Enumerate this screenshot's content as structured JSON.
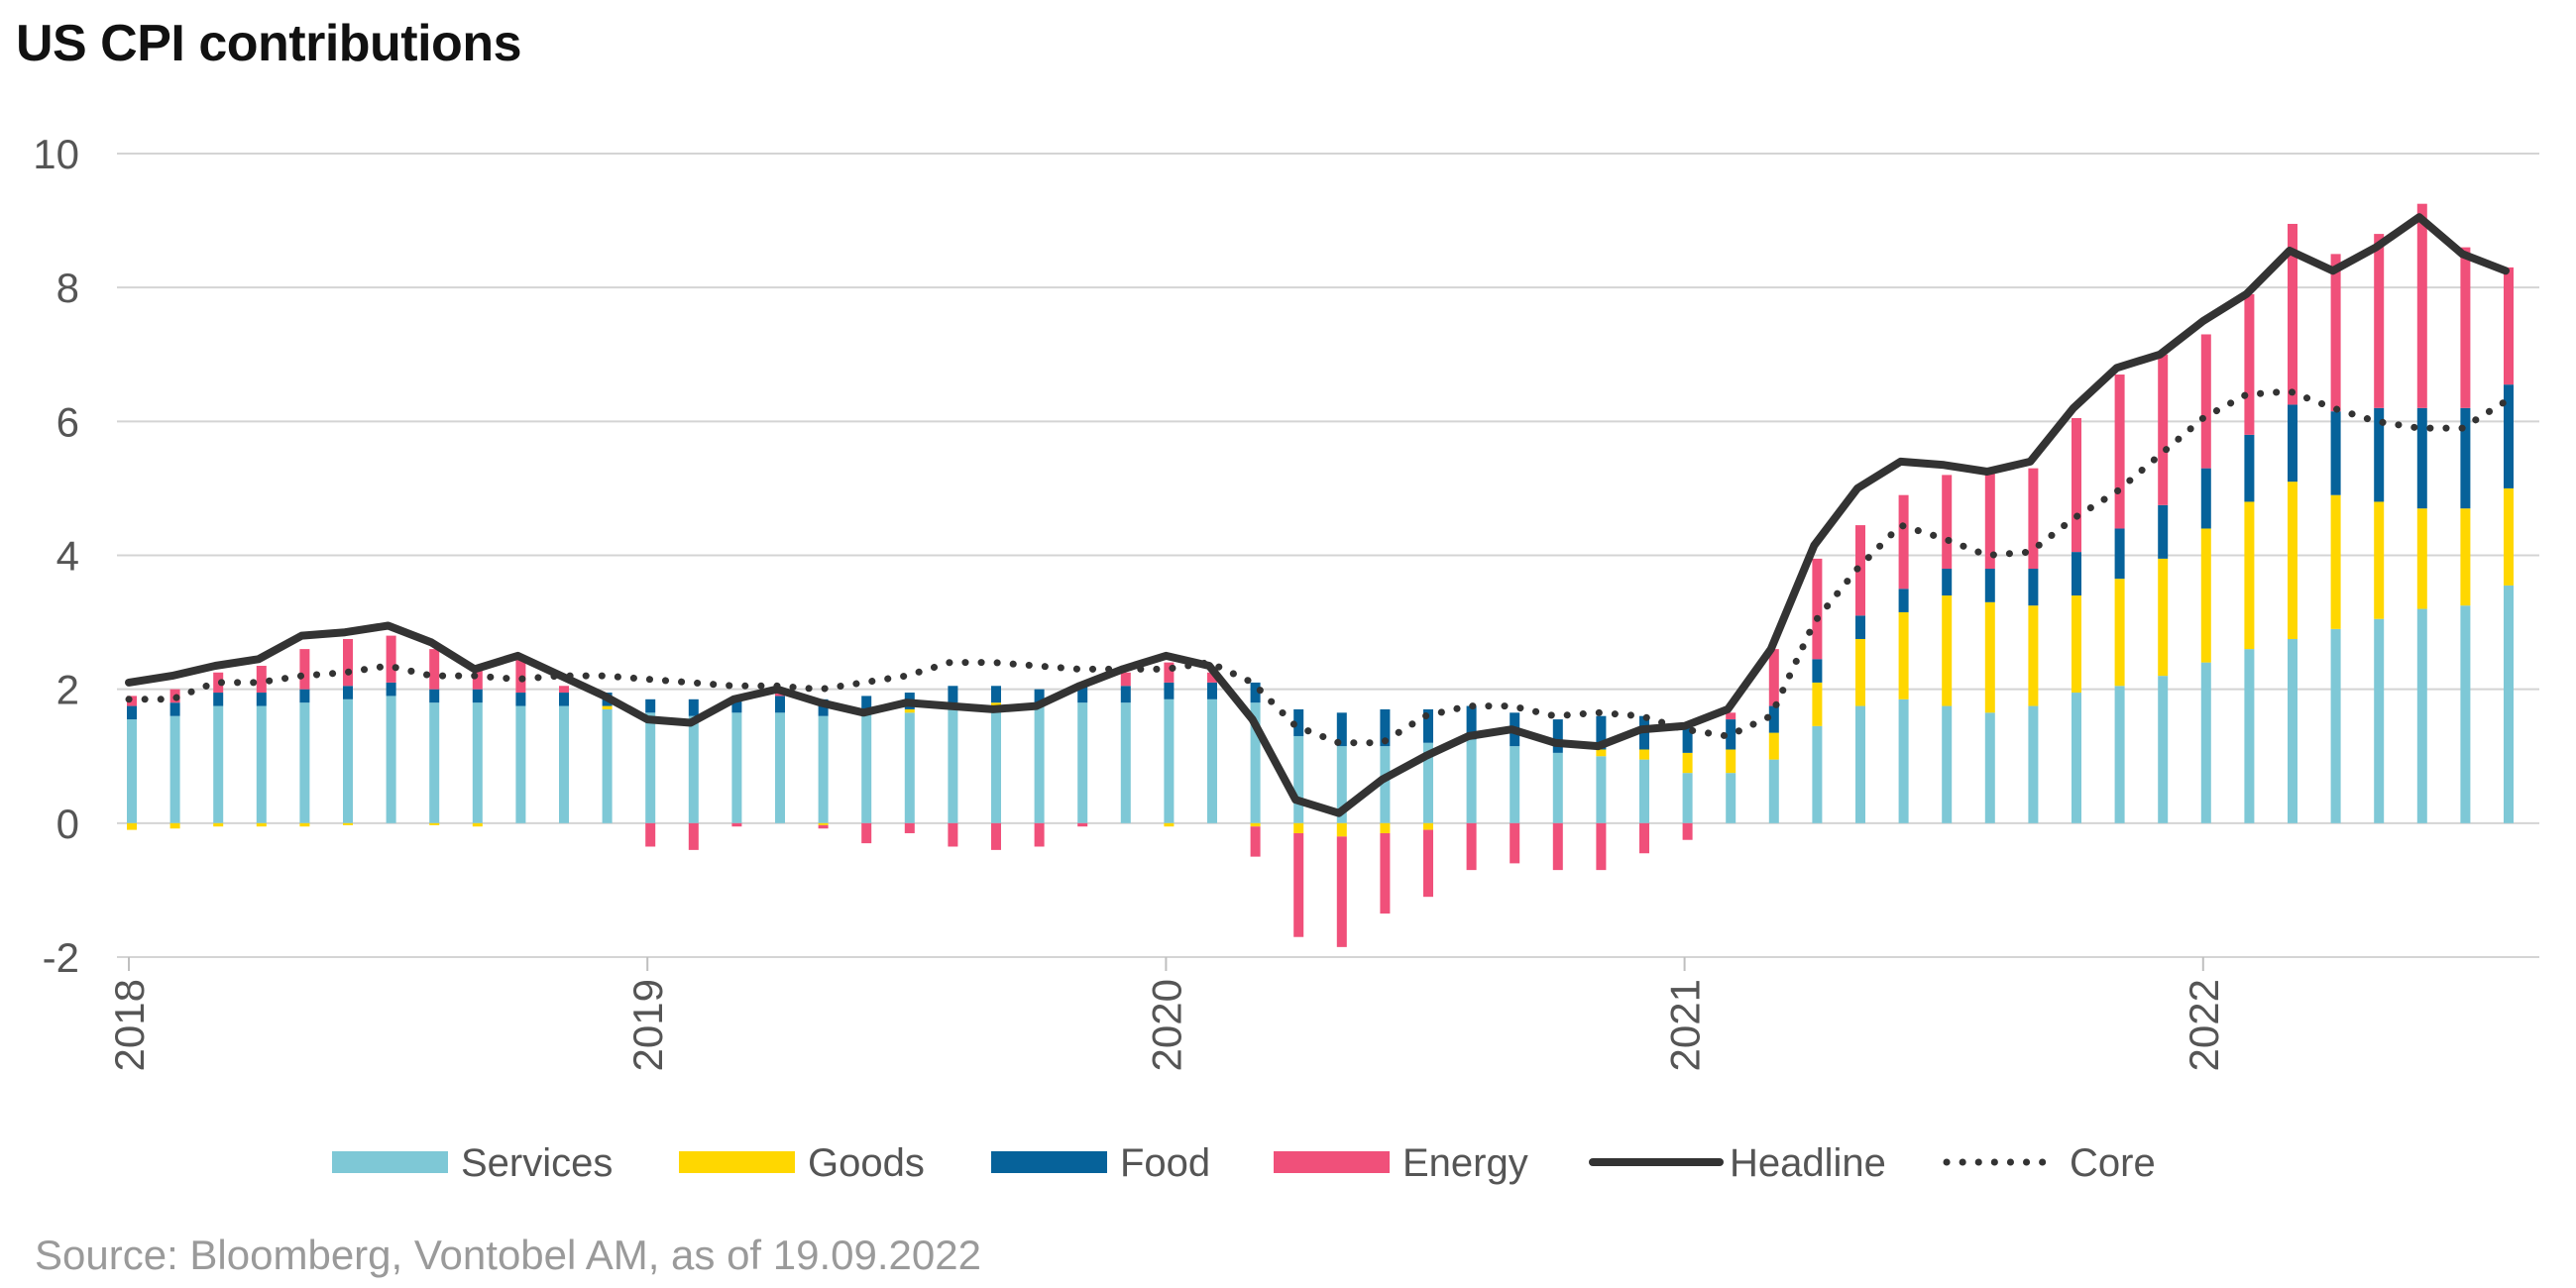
{
  "title": "US CPI contributions",
  "source": "Source: Bloomberg, Vontobel AM, as of 19.09.2022",
  "chart_data": {
    "type": "bar",
    "title": "US CPI contributions",
    "xlabel": "",
    "ylabel": "",
    "ylim": [
      -2,
      10
    ],
    "yticks": [
      10,
      8,
      6,
      4,
      2,
      0,
      -2
    ],
    "ytick_labels": [
      "10",
      "8",
      "6",
      "4",
      "2",
      "0",
      "-2"
    ],
    "xtick_labels": [
      "2018",
      "2019",
      "2020",
      "2021",
      "2022"
    ],
    "xtick_index": [
      0,
      12,
      24,
      36,
      48
    ],
    "grid": true,
    "legend_position": "bottom",
    "months": [
      "2018-01",
      "2018-02",
      "2018-03",
      "2018-04",
      "2018-05",
      "2018-06",
      "2018-07",
      "2018-08",
      "2018-09",
      "2018-10",
      "2018-11",
      "2018-12",
      "2019-01",
      "2019-02",
      "2019-03",
      "2019-04",
      "2019-05",
      "2019-06",
      "2019-07",
      "2019-08",
      "2019-09",
      "2019-10",
      "2019-11",
      "2019-12",
      "2020-01",
      "2020-02",
      "2020-03",
      "2020-04",
      "2020-05",
      "2020-06",
      "2020-07",
      "2020-08",
      "2020-09",
      "2020-10",
      "2020-11",
      "2020-12",
      "2021-01",
      "2021-02",
      "2021-03",
      "2021-04",
      "2021-05",
      "2021-06",
      "2021-07",
      "2021-08",
      "2021-09",
      "2021-10",
      "2021-11",
      "2021-12",
      "2022-01",
      "2022-02",
      "2022-03",
      "2022-04",
      "2022-05",
      "2022-06",
      "2022-07",
      "2022-08"
    ],
    "series": [
      {
        "name": "Services",
        "kind": "bar",
        "color": "#7ec8d6",
        "values": [
          1.55,
          1.6,
          1.75,
          1.75,
          1.8,
          1.85,
          1.9,
          1.8,
          1.8,
          1.75,
          1.75,
          1.7,
          1.65,
          1.6,
          1.65,
          1.65,
          1.6,
          1.65,
          1.65,
          1.7,
          1.75,
          1.75,
          1.8,
          1.8,
          1.85,
          1.85,
          1.8,
          1.3,
          1.15,
          1.15,
          1.2,
          1.25,
          1.15,
          1.05,
          1.0,
          0.95,
          0.75,
          0.75,
          0.95,
          1.45,
          1.75,
          1.85,
          1.75,
          1.65,
          1.75,
          1.95,
          2.05,
          2.2,
          2.4,
          2.6,
          2.75,
          2.9,
          3.05,
          3.2,
          3.25,
          3.55
        ]
      },
      {
        "name": "Goods",
        "kind": "bar",
        "color": "#ffd700",
        "values": [
          -0.1,
          -0.08,
          -0.05,
          -0.05,
          -0.05,
          -0.03,
          0.0,
          -0.03,
          -0.05,
          0.0,
          0.0,
          0.05,
          0.0,
          0.0,
          0.0,
          0.0,
          -0.03,
          0.0,
          0.05,
          0.1,
          0.05,
          0.0,
          0.0,
          0.0,
          -0.05,
          0.0,
          -0.05,
          -0.15,
          -0.2,
          -0.15,
          -0.1,
          0.0,
          0.0,
          0.0,
          0.1,
          0.15,
          0.3,
          0.35,
          0.4,
          0.65,
          1.0,
          1.3,
          1.65,
          1.65,
          1.5,
          1.45,
          1.6,
          1.75,
          2.0,
          2.2,
          2.35,
          2.0,
          1.75,
          1.5,
          1.45,
          1.45
        ]
      },
      {
        "name": "Food",
        "kind": "bar",
        "color": "#06629a",
        "values": [
          0.2,
          0.2,
          0.2,
          0.2,
          0.2,
          0.2,
          0.2,
          0.2,
          0.2,
          0.2,
          0.2,
          0.2,
          0.2,
          0.25,
          0.25,
          0.25,
          0.25,
          0.25,
          0.25,
          0.25,
          0.25,
          0.25,
          0.25,
          0.25,
          0.25,
          0.25,
          0.3,
          0.4,
          0.5,
          0.55,
          0.5,
          0.5,
          0.5,
          0.5,
          0.5,
          0.5,
          0.45,
          0.45,
          0.4,
          0.35,
          0.35,
          0.35,
          0.4,
          0.5,
          0.55,
          0.65,
          0.75,
          0.8,
          0.9,
          1.0,
          1.15,
          1.25,
          1.4,
          1.5,
          1.5,
          1.55
        ]
      },
      {
        "name": "Energy",
        "kind": "bar",
        "color": "#f0507a",
        "values": [
          0.15,
          0.2,
          0.3,
          0.4,
          0.6,
          0.7,
          0.7,
          0.6,
          0.3,
          0.5,
          0.1,
          0.0,
          -0.35,
          -0.4,
          -0.05,
          0.1,
          -0.05,
          -0.3,
          -0.15,
          -0.35,
          -0.4,
          -0.35,
          -0.05,
          0.2,
          0.3,
          0.15,
          -0.45,
          -1.55,
          -1.65,
          -1.2,
          -1.0,
          -0.7,
          -0.6,
          -0.7,
          -0.7,
          -0.45,
          -0.25,
          0.1,
          0.85,
          1.5,
          1.35,
          1.4,
          1.4,
          1.45,
          1.5,
          2.0,
          2.3,
          2.25,
          2.0,
          2.1,
          2.7,
          2.35,
          2.6,
          3.05,
          2.4,
          1.75
        ]
      },
      {
        "name": "Headline",
        "kind": "line",
        "color": "#333333",
        "values": [
          2.1,
          2.2,
          2.35,
          2.45,
          2.8,
          2.85,
          2.95,
          2.7,
          2.3,
          2.5,
          2.2,
          1.9,
          1.55,
          1.5,
          1.85,
          2.0,
          1.8,
          1.65,
          1.8,
          1.75,
          1.7,
          1.75,
          2.05,
          2.3,
          2.5,
          2.35,
          1.55,
          0.35,
          0.15,
          0.65,
          1.0,
          1.3,
          1.4,
          1.2,
          1.15,
          1.4,
          1.45,
          1.7,
          2.6,
          4.15,
          5.0,
          5.4,
          5.35,
          5.25,
          5.4,
          6.2,
          6.8,
          7.0,
          7.5,
          7.9,
          8.55,
          8.25,
          8.6,
          9.05,
          8.5,
          8.25
        ]
      },
      {
        "name": "Core",
        "kind": "line-dotted",
        "color": "#333333",
        "values": [
          1.85,
          1.85,
          2.1,
          2.1,
          2.2,
          2.25,
          2.35,
          2.2,
          2.2,
          2.15,
          2.2,
          2.2,
          2.15,
          2.1,
          2.05,
          2.05,
          2.0,
          2.1,
          2.2,
          2.4,
          2.4,
          2.35,
          2.3,
          2.3,
          2.3,
          2.4,
          2.1,
          1.45,
          1.2,
          1.2,
          1.6,
          1.75,
          1.75,
          1.6,
          1.65,
          1.6,
          1.4,
          1.3,
          1.6,
          3.0,
          3.8,
          4.45,
          4.25,
          4.0,
          4.05,
          4.55,
          4.95,
          5.5,
          6.05,
          6.4,
          6.45,
          6.2,
          6.0,
          5.9,
          5.9,
          6.3
        ]
      }
    ]
  },
  "legend": [
    {
      "label": "Services",
      "kind": "bar",
      "color": "#7ec8d6"
    },
    {
      "label": "Goods",
      "kind": "bar",
      "color": "#ffd700"
    },
    {
      "label": "Food",
      "kind": "bar",
      "color": "#06629a"
    },
    {
      "label": "Energy",
      "kind": "bar",
      "color": "#f0507a"
    },
    {
      "label": "Headline",
      "kind": "line",
      "color": "#333333"
    },
    {
      "label": "Core",
      "kind": "line-dotted",
      "color": "#333333"
    }
  ]
}
